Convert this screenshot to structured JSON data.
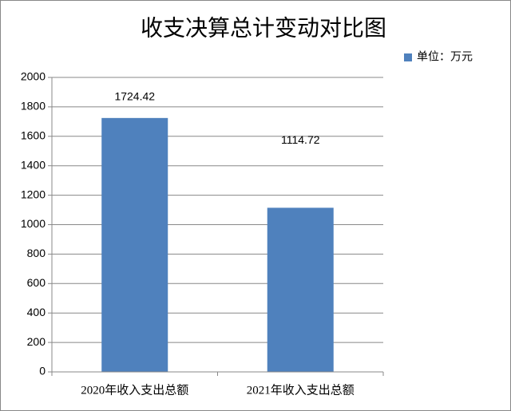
{
  "chart_data": {
    "type": "bar",
    "title": "收支决算总计变动对比图",
    "categories": [
      "2020年收入支出总额",
      "2021年收入支出总额"
    ],
    "series": [
      {
        "name": "单位：万元",
        "color": "#4f81bd",
        "values": [
          1724.42,
          1114.72
        ]
      }
    ],
    "ylim": [
      0,
      2000
    ],
    "yticks": [
      0,
      200,
      400,
      600,
      800,
      1000,
      1200,
      1400,
      1600,
      1800,
      2000
    ],
    "grid": true,
    "legend": "top-right"
  }
}
